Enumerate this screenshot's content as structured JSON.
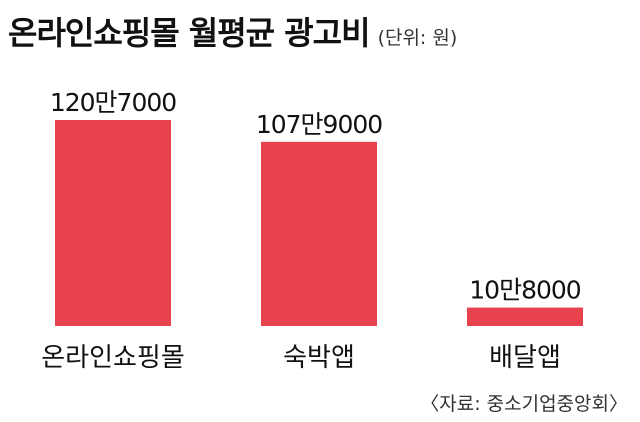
{
  "title": "온라인쇼핑몰 월평균 광고비",
  "unit": "(단위: 원)",
  "source": "〈자료: 중소기업중앙회〉",
  "colors": {
    "bar": "#e8424f",
    "text": "#111111"
  },
  "chart_data": {
    "type": "bar",
    "title": "온라인쇼핑몰 월평균 광고비",
    "categories": [
      "온라인쇼핑몰",
      "숙박앱",
      "배달앱"
    ],
    "values": [
      1207000,
      1079000,
      108000
    ],
    "value_labels": [
      "120만7000",
      "107만9000",
      "10만8000"
    ],
    "xlabel": "",
    "ylabel": "",
    "ylim": [
      0,
      1207000
    ],
    "grid": false,
    "legend": "none"
  }
}
